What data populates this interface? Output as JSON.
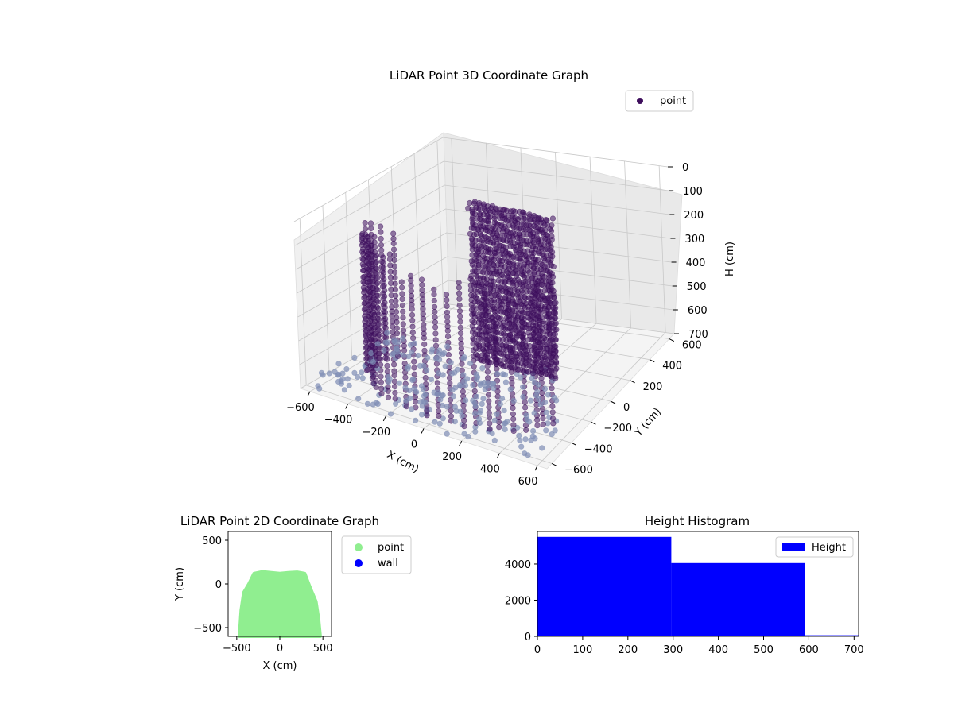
{
  "figure": {
    "background": "#ffffff",
    "tick_color": "#000000",
    "grid_color": "#c8c8c8"
  },
  "chart_data": [
    {
      "id": "lidar3d",
      "type": "scatter",
      "title": "LiDAR Point 3D Coordinate Graph",
      "xlabel": "X (cm)",
      "ylabel": "Y (cm)",
      "zlabel": "H (cm)",
      "xlim": [
        -650,
        650
      ],
      "ylim": [
        -650,
        650
      ],
      "zlim": [
        700,
        0
      ],
      "xticks": [
        -600,
        -400,
        -200,
        0,
        200,
        400,
        600
      ],
      "yticks": [
        -600,
        -400,
        -200,
        0,
        200,
        400,
        600
      ],
      "zticks": [
        0,
        100,
        200,
        300,
        400,
        500,
        600,
        700
      ],
      "grid": true,
      "legend": {
        "position": "top-right",
        "entries": [
          "point"
        ]
      },
      "colors": {
        "near": "#3d0d5c",
        "far": "#7f8db5"
      },
      "series": [
        {
          "name": "point",
          "description_points": "LiDAR point cloud: wall points arranged in vertical columns along an arc around the room (x from about -550 to 550, y from about -500 to 130, heights 0-700) plus scattered floor points",
          "samples": [
            [
              -500,
              -450,
              120
            ],
            [
              -450,
              -380,
              250
            ],
            [
              -380,
              -250,
              400
            ],
            [
              -300,
              -100,
              550
            ],
            [
              -200,
              50,
              600
            ],
            [
              -80,
              120,
              650
            ],
            [
              80,
              120,
              650
            ],
            [
              200,
              60,
              600
            ],
            [
              320,
              -80,
              550
            ],
            [
              420,
              -250,
              400
            ],
            [
              480,
              -380,
              250
            ],
            [
              520,
              -450,
              120
            ],
            [
              -300,
              -500,
              680
            ],
            [
              0,
              -550,
              690
            ],
            [
              300,
              -500,
              680
            ],
            [
              100,
              -300,
              690
            ]
          ]
        }
      ]
    },
    {
      "id": "lidar2d",
      "type": "scatter",
      "title": "LiDAR Point 2D Coordinate Graph",
      "xlabel": "X (cm)",
      "ylabel": "Y (cm)",
      "xlim": [
        -600,
        600
      ],
      "ylim": [
        -600,
        600
      ],
      "xticks": [
        -500,
        0,
        500
      ],
      "yticks": [
        -500,
        0,
        500
      ],
      "legend": {
        "position": "outside-right",
        "entries": [
          "point",
          "wall"
        ]
      },
      "series": [
        {
          "name": "point",
          "color": "#90ee90",
          "region_outline": [
            [
              -470,
              -600
            ],
            [
              -450,
              -300
            ],
            [
              -420,
              -100
            ],
            [
              -360,
              0
            ],
            [
              -330,
              60
            ],
            [
              -300,
              120
            ],
            [
              -200,
              140
            ],
            [
              -100,
              130
            ],
            [
              0,
              120
            ],
            [
              100,
              130
            ],
            [
              200,
              135
            ],
            [
              290,
              120
            ],
            [
              320,
              40
            ],
            [
              360,
              -60
            ],
            [
              420,
              -200
            ],
            [
              450,
              -400
            ],
            [
              470,
              -600
            ]
          ]
        },
        {
          "name": "wall",
          "color": "#0000ff",
          "points": []
        }
      ]
    },
    {
      "id": "height_hist",
      "type": "bar",
      "title": "Height Histogram",
      "xlabel": "",
      "ylabel": "",
      "xlim": [
        0,
        710
      ],
      "ylim": [
        0,
        5800
      ],
      "xticks": [
        0,
        100,
        200,
        300,
        400,
        500,
        600,
        700
      ],
      "yticks": [
        0,
        2000,
        4000
      ],
      "legend": {
        "position": "top-right",
        "entries": [
          "Height"
        ]
      },
      "series": [
        {
          "name": "Height",
          "color": "#0000ff",
          "bins": [
            {
              "start": 0,
              "end": 296,
              "count": 5500
            },
            {
              "start": 296,
              "end": 592,
              "count": 4050
            },
            {
              "start": 592,
              "end": 710,
              "count": 60
            }
          ]
        }
      ]
    }
  ]
}
